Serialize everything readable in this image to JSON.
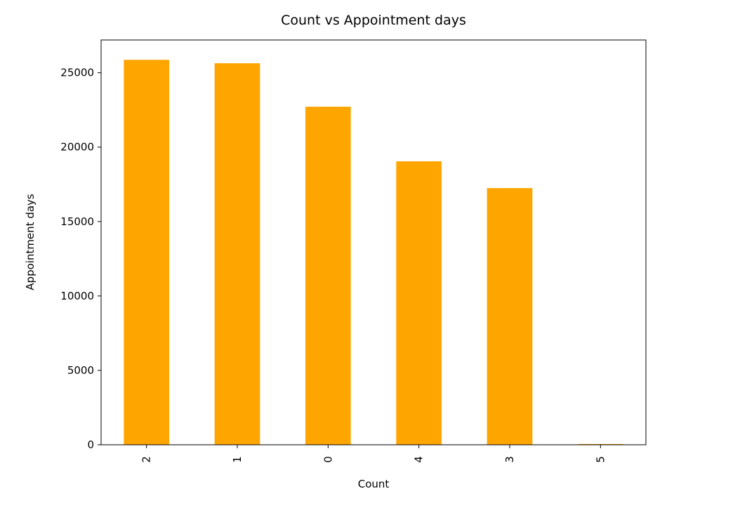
{
  "chart_data": {
    "type": "bar",
    "title": "Count vs Appointment days",
    "xlabel": "Count",
    "ylabel": "Appointment days",
    "categories": [
      "2",
      "1",
      "0",
      "4",
      "3",
      "5"
    ],
    "values": [
      25868,
      25638,
      22715,
      19048,
      17247,
      48
    ],
    "ylim": [
      0,
      27200
    ],
    "yticks": [
      0,
      5000,
      10000,
      15000,
      20000,
      25000
    ],
    "bar_color": "#ffa500",
    "grid": false,
    "legend": "none"
  }
}
